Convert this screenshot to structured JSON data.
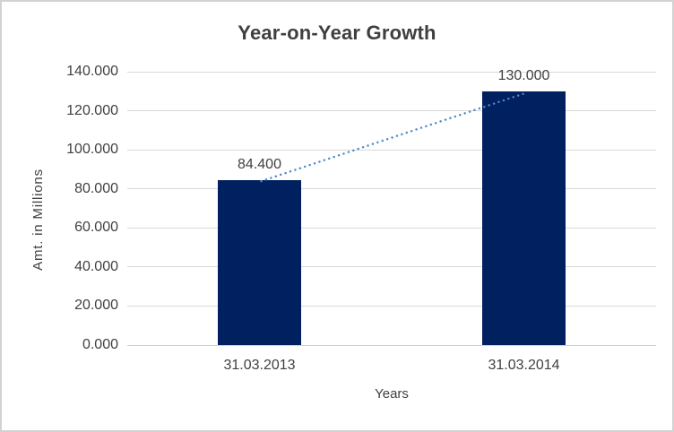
{
  "chart": {
    "title": "Year-on-Year Growth",
    "y_axis_title": "Amt. in Millions",
    "x_axis_title": "Years"
  },
  "chart_data": {
    "type": "bar",
    "title": "Year-on-Year Growth",
    "xlabel": "Years",
    "ylabel": "Amt. in Millions",
    "categories": [
      "31.03.2013",
      "31.03.2014"
    ],
    "values": [
      84.4,
      130.0
    ],
    "value_labels": [
      "84.400",
      "130.000"
    ],
    "ylim": [
      0,
      140
    ],
    "ytick_step": 20,
    "ytick_labels": [
      "0.000",
      "20.000",
      "40.000",
      "60.000",
      "80.000",
      "100.000",
      "120.000",
      "140.000"
    ],
    "grid": "horizontal-only",
    "legend_position": "none",
    "trendline": {
      "style": "dotted",
      "connects": "bar-tops"
    },
    "colors": {
      "bar": "#002060",
      "trendline": "#4f87c7",
      "gridline": "#d9d9d9",
      "axis_line": "#cfcfcf",
      "text": "#404040",
      "title_text": "#3f3f3f",
      "background": "#ffffff",
      "frame_border": "#d2d2d2"
    }
  }
}
